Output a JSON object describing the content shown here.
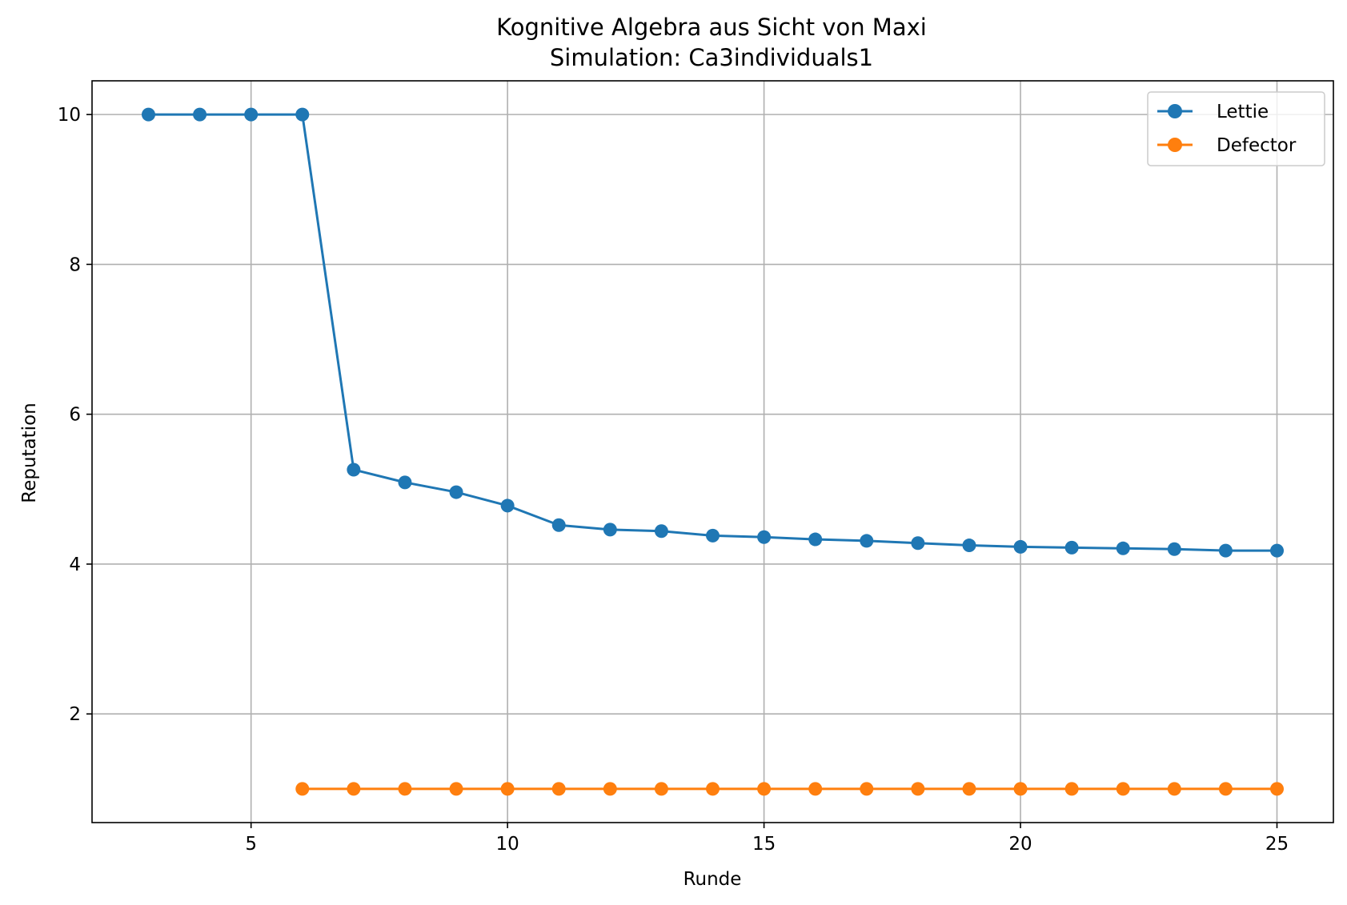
{
  "chart_data": {
    "type": "line",
    "title": "Kognitive Algebra aus Sicht von Maxi",
    "subtitle": "Simulation: Ca3individuals1",
    "xlabel": "Runde",
    "ylabel": "Reputation",
    "xlim": [
      1.9,
      26.1
    ],
    "ylim": [
      0.55,
      10.45
    ],
    "xticks": [
      5,
      10,
      15,
      20,
      25
    ],
    "yticks": [
      2,
      4,
      6,
      8,
      10
    ],
    "grid": true,
    "legend_position": "top-right",
    "series": [
      {
        "name": "Lettie",
        "color": "#1f77b4",
        "x": [
          3,
          4,
          5,
          6,
          7,
          8,
          9,
          10,
          11,
          12,
          13,
          14,
          15,
          16,
          17,
          18,
          19,
          20,
          21,
          22,
          23,
          24,
          25
        ],
        "y": [
          10,
          10,
          10,
          10,
          5.26,
          5.09,
          4.96,
          4.78,
          4.52,
          4.46,
          4.44,
          4.38,
          4.36,
          4.33,
          4.31,
          4.28,
          4.25,
          4.23,
          4.22,
          4.21,
          4.2,
          4.18,
          4.18
        ]
      },
      {
        "name": "Defector",
        "color": "#ff7f0e",
        "x": [
          6,
          7,
          8,
          9,
          10,
          11,
          12,
          13,
          14,
          15,
          16,
          17,
          18,
          19,
          20,
          21,
          22,
          23,
          24,
          25
        ],
        "y": [
          1,
          1,
          1,
          1,
          1,
          1,
          1,
          1,
          1,
          1,
          1,
          1,
          1,
          1,
          1,
          1,
          1,
          1,
          1,
          1
        ]
      }
    ]
  }
}
